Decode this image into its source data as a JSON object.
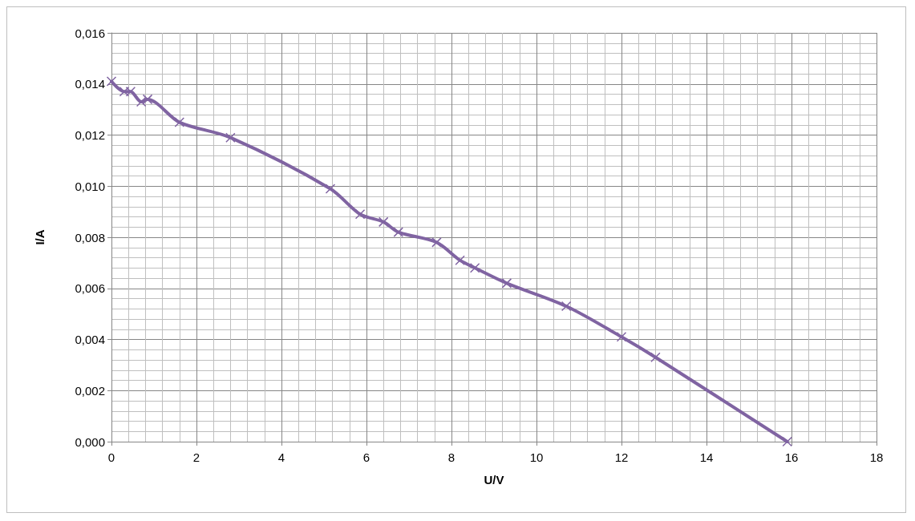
{
  "chart_data": {
    "type": "line",
    "xlabel": "U/V",
    "ylabel": "I/A",
    "marker": "cross",
    "grid": true,
    "x": [
      0,
      0.3,
      0.45,
      0.7,
      0.85,
      1.6,
      2.8,
      5.15,
      5.85,
      6.4,
      6.75,
      7.65,
      8.2,
      8.55,
      9.3,
      10.7,
      12.0,
      12.8,
      15.9
    ],
    "series": [
      {
        "color": "#8064a2",
        "values": [
          0.0141,
          0.0137,
          0.0137,
          0.0133,
          0.0134,
          0.0125,
          0.0119,
          0.0099,
          0.0089,
          0.0086,
          0.0082,
          0.0078,
          0.0071,
          0.0068,
          0.0062,
          0.0053,
          0.0041,
          0.0033,
          0.0
        ]
      }
    ],
    "xlim": [
      0,
      18
    ],
    "xticks": [
      0,
      2,
      4,
      6,
      8,
      10,
      12,
      14,
      16,
      18
    ],
    "ylim": [
      0,
      0.016
    ],
    "yticks": [
      {
        "value": 0,
        "label": "0,000"
      },
      {
        "value": 0.002,
        "label": "0,002"
      },
      {
        "value": 0.004,
        "label": "0,004"
      },
      {
        "value": 0.006,
        "label": "0,006"
      },
      {
        "value": 0.008,
        "label": "0,008"
      },
      {
        "value": 0.01,
        "label": "0,010"
      },
      {
        "value": 0.012,
        "label": "0,012"
      },
      {
        "value": 0.014,
        "label": "0,014"
      },
      {
        "value": 0.016,
        "label": "0,016"
      }
    ]
  }
}
